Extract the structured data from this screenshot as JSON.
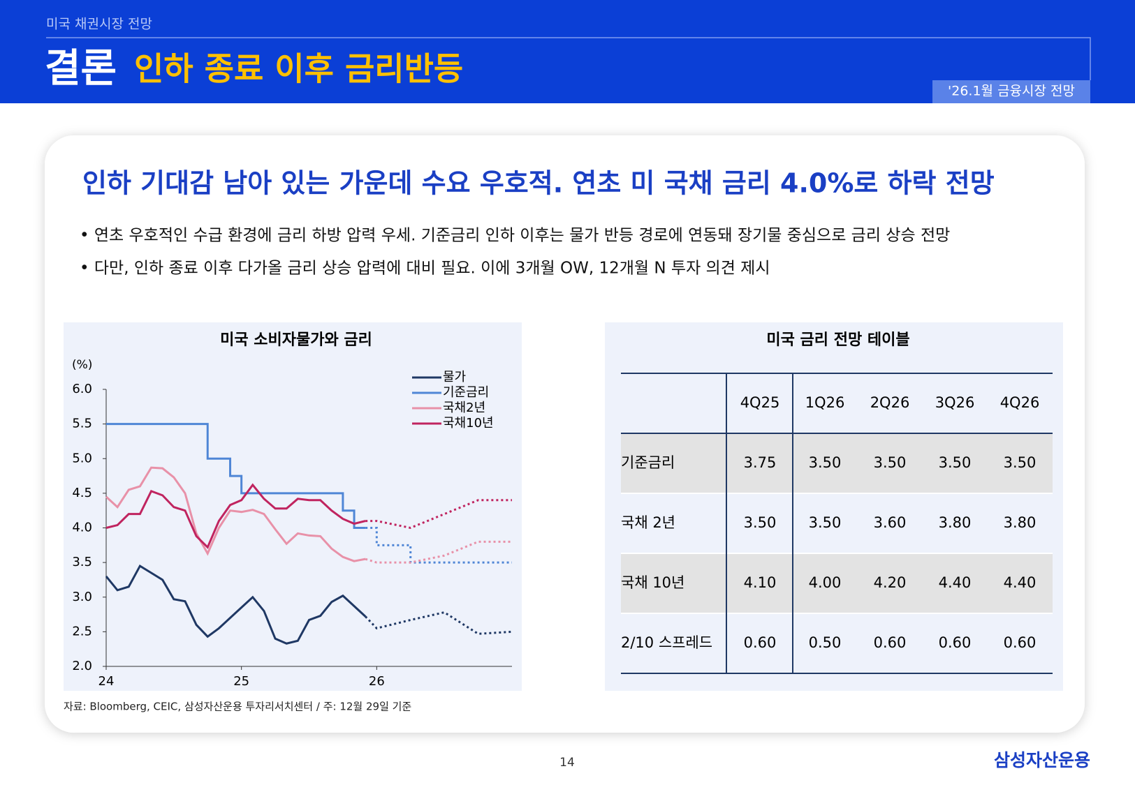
{
  "header": {
    "section": "미국 채권시장 전망",
    "title": "결론",
    "subtitle": "인하 종료 이후 금리반등",
    "badge": "'26.1월 금융시장 전망"
  },
  "headline": "인하 기대감 남아 있는 가운데 수요 우호적. 연초 미 국채 금리 4.0%로 하락 전망",
  "bullets": [
    "• 연초 우호적인 수급 환경에 금리 하방 압력 우세. 기준금리 인하 이후는 물가 반등 경로에 연동돼 장기물 중심으로 금리 상승 전망",
    "• 다만, 인하 종료 이후 다가올 금리 상승 압력에 대비 필요. 이에 3개월 OW, 12개월 N 투자 의견 제시"
  ],
  "chart_data": {
    "type": "line",
    "title": "미국 소비자물가와 금리",
    "y_label": "(%)",
    "x": [
      0,
      1,
      2,
      3,
      4,
      5,
      6,
      7,
      8,
      9,
      10,
      11,
      12,
      13,
      14,
      15,
      16,
      17,
      18,
      19,
      20,
      21,
      22,
      23
    ],
    "xlim": [
      0,
      36
    ],
    "xticks": [
      {
        "value": 0,
        "label": "24"
      },
      {
        "value": 12,
        "label": "25"
      },
      {
        "value": 24,
        "label": "26"
      }
    ],
    "ylim": [
      2.0,
      6.0
    ],
    "yticks": [
      {
        "value": 2,
        "label": "2.0"
      },
      {
        "value": 2.5,
        "label": "2.5"
      },
      {
        "value": 3,
        "label": "3.0"
      },
      {
        "value": 3.5,
        "label": "3.5"
      },
      {
        "value": 4,
        "label": "4.0"
      },
      {
        "value": 4.5,
        "label": "4.5"
      },
      {
        "value": 5,
        "label": "5.0"
      },
      {
        "value": 5.5,
        "label": "5.5"
      },
      {
        "value": 6,
        "label": "6.0"
      }
    ],
    "forecast_style": "dotted",
    "legend": "top-right",
    "series": [
      {
        "name": "물가",
        "color": "#1f3864",
        "values": [
          3.3,
          3.1,
          3.15,
          3.45,
          3.35,
          3.25,
          2.97,
          2.94,
          2.6,
          2.43,
          2.55,
          2.7,
          2.85,
          3.0,
          2.8,
          2.4,
          2.33,
          2.37,
          2.67,
          2.73,
          2.93,
          3.02,
          2.87,
          2.72
        ],
        "forecast": {
          "x": [
            23,
            24,
            27,
            30,
            33,
            36
          ],
          "values": [
            2.72,
            2.55,
            2.67,
            2.78,
            2.47,
            2.5
          ]
        }
      },
      {
        "name": "기준금리",
        "color": "#4f86d6",
        "step": true,
        "values": [
          5.5,
          5.5,
          5.5,
          5.5,
          5.5,
          5.5,
          5.5,
          5.5,
          5.5,
          5.0,
          5.0,
          4.75,
          4.5,
          4.5,
          4.5,
          4.5,
          4.5,
          4.5,
          4.5,
          4.5,
          4.5,
          4.25,
          4.0,
          4.0
        ],
        "forecast": {
          "x": [
            23,
            24,
            27,
            36
          ],
          "values": [
            4.0,
            3.75,
            3.5,
            3.5
          ]
        }
      },
      {
        "name": "국채2년",
        "color": "#e891a8",
        "values": [
          4.45,
          4.3,
          4.55,
          4.6,
          4.87,
          4.86,
          4.73,
          4.5,
          3.92,
          3.63,
          4.0,
          4.25,
          4.23,
          4.26,
          4.2,
          3.98,
          3.77,
          3.92,
          3.89,
          3.88,
          3.7,
          3.58,
          3.52,
          3.55
        ],
        "forecast": {
          "x": [
            23,
            24,
            27,
            30,
            33,
            36
          ],
          "values": [
            3.55,
            3.5,
            3.5,
            3.6,
            3.8,
            3.8
          ]
        }
      },
      {
        "name": "국채10년",
        "color": "#c0245f",
        "values": [
          4.0,
          4.04,
          4.2,
          4.2,
          4.53,
          4.47,
          4.3,
          4.25,
          3.88,
          3.72,
          4.1,
          4.33,
          4.4,
          4.62,
          4.42,
          4.28,
          4.28,
          4.42,
          4.4,
          4.4,
          4.25,
          4.13,
          4.06,
          4.1
        ],
        "forecast": {
          "x": [
            23,
            24,
            27,
            30,
            33,
            36
          ],
          "values": [
            4.1,
            4.1,
            4.0,
            4.2,
            4.4,
            4.4
          ]
        }
      }
    ]
  },
  "table": {
    "title": "미국 금리 전망 테이블",
    "columns": [
      "4Q25",
      "1Q26",
      "2Q26",
      "3Q26",
      "4Q26"
    ],
    "rows": [
      {
        "label": "기준금리",
        "values": [
          "3.75",
          "3.50",
          "3.50",
          "3.50",
          "3.50"
        ]
      },
      {
        "label": "국채 2년",
        "values": [
          "3.50",
          "3.50",
          "3.60",
          "3.80",
          "3.80"
        ]
      },
      {
        "label": "국채 10년",
        "values": [
          "4.10",
          "4.00",
          "4.20",
          "4.40",
          "4.40"
        ]
      },
      {
        "label": "2/10 스프레드",
        "values": [
          "0.60",
          "0.50",
          "0.60",
          "0.60",
          "0.60"
        ]
      }
    ]
  },
  "source": "자료: Bloomberg, CEIC, 삼성자산운용 투자리서치센터 / 주: 12월 29일 기준",
  "page": "14",
  "logo": "삼성자산운용"
}
